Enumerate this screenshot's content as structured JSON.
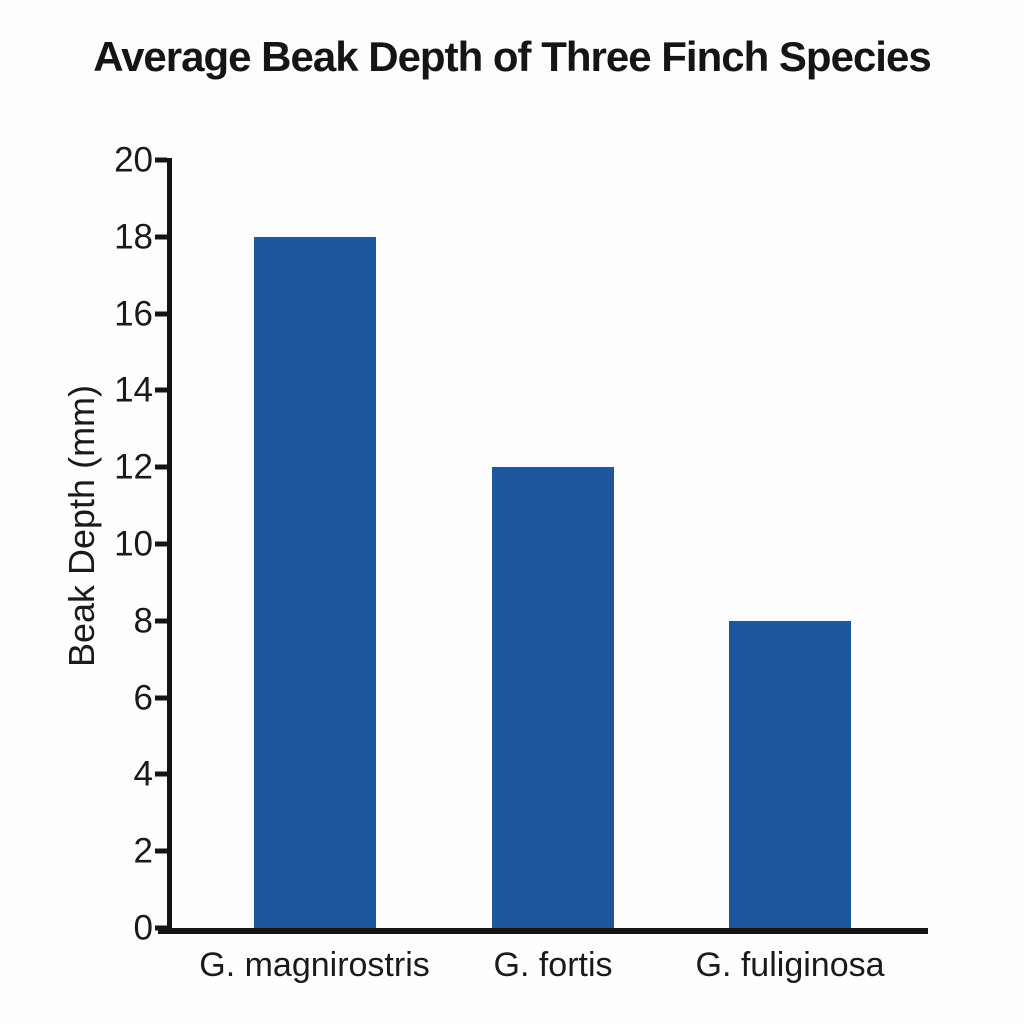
{
  "title": "Average Beak Depth of Three Finch Species",
  "y_axis": {
    "label": "Beak Depth (mm)",
    "tick_labels": [
      "0",
      "2",
      "4",
      "6",
      "8",
      "10",
      "12",
      "14",
      "16",
      "18",
      "20"
    ]
  },
  "x_axis": {
    "labels": [
      "G. magnirostris",
      "G. fortis",
      "G. fuliginosa"
    ]
  },
  "chart_data": {
    "type": "bar",
    "title": "Average Beak Depth of Three Finch Species",
    "categories": [
      "G. magnirostris",
      "G. fortis",
      "G. fuliginosa"
    ],
    "values": [
      18,
      12,
      8
    ],
    "xlabel": "",
    "ylabel": "Beak Depth (mm)",
    "ylim": [
      0,
      20
    ],
    "ytick_step": 2,
    "yticks": [
      0,
      2,
      4,
      6,
      8,
      10,
      12,
      14,
      16,
      18,
      20
    ],
    "grid": false,
    "legend": false,
    "bar_color": "#1d569d",
    "axis_color": "#141414",
    "text_color": "#1a1a1a",
    "background_color": "#fefefe"
  }
}
